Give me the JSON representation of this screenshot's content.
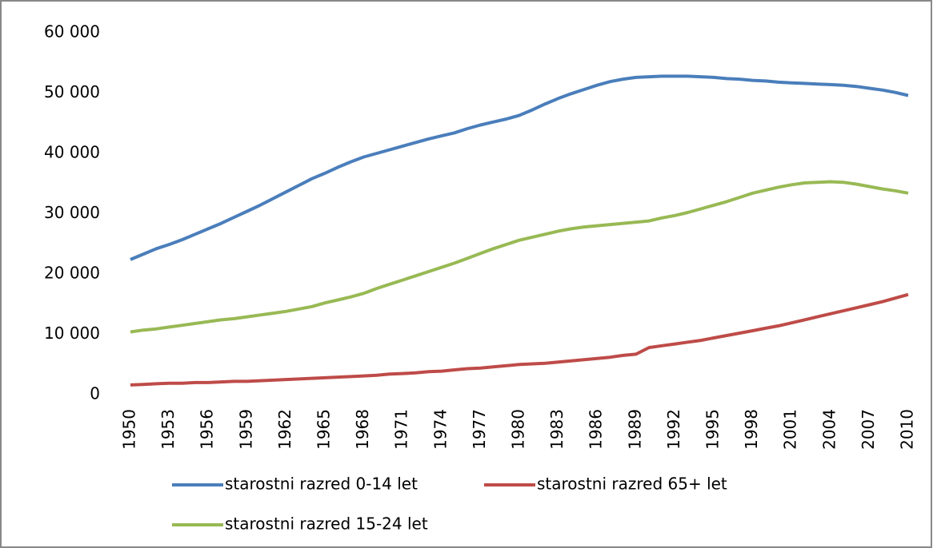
{
  "chart_data": {
    "type": "line",
    "categories": [
      "1950",
      null,
      null,
      "1953",
      null,
      null,
      "1956",
      null,
      null,
      "1959",
      null,
      null,
      "1962",
      null,
      null,
      "1965",
      null,
      null,
      "1968",
      null,
      null,
      "1971",
      null,
      null,
      "1974",
      null,
      null,
      "1977",
      null,
      null,
      "1980",
      null,
      null,
      "1983",
      null,
      null,
      "1986",
      null,
      null,
      "1989",
      null,
      null,
      "1992",
      null,
      null,
      "1995",
      null,
      null,
      "1998",
      null,
      null,
      "2001",
      null,
      null,
      "2004",
      null,
      null,
      "2007",
      null,
      null,
      "2010"
    ],
    "series": [
      {
        "name": "starostni razred 0-14 let",
        "color": "#4a7ebb",
        "values": [
          22400,
          23300,
          24200,
          24900,
          25700,
          26600,
          27500,
          28400,
          29400,
          30400,
          31400,
          32500,
          33600,
          34700,
          35800,
          36700,
          37700,
          38600,
          39400,
          40000,
          40600,
          41200,
          41800,
          42400,
          42900,
          43400,
          44100,
          44700,
          45200,
          45700,
          46300,
          47200,
          48200,
          49100,
          49900,
          50600,
          51300,
          51900,
          52300,
          52600,
          52700,
          52800,
          52800,
          52800,
          52700,
          52600,
          52400,
          52300,
          52100,
          52000,
          51800,
          51700,
          51600,
          51500,
          51400,
          51300,
          51100,
          50800,
          50500,
          50100,
          49600
        ]
      },
      {
        "name": "starostni razred 65+ let",
        "color": "#be4b48",
        "values": [
          1600,
          1700,
          1800,
          1900,
          1900,
          2000,
          2000,
          2100,
          2200,
          2200,
          2300,
          2400,
          2500,
          2600,
          2700,
          2800,
          2900,
          3000,
          3100,
          3200,
          3400,
          3500,
          3600,
          3800,
          3900,
          4100,
          4300,
          4400,
          4600,
          4800,
          5000,
          5100,
          5200,
          5400,
          5600,
          5800,
          6000,
          6200,
          6500,
          6700,
          7800,
          8100,
          8400,
          8700,
          9000,
          9400,
          9800,
          10200,
          10600,
          11000,
          11400,
          11900,
          12400,
          12900,
          13400,
          13900,
          14400,
          14900,
          15400,
          16000,
          16600
        ]
      },
      {
        "name": "starostni razred 15-24 let",
        "color": "#98b954",
        "values": [
          10400,
          10700,
          10900,
          11200,
          11500,
          11800,
          12100,
          12400,
          12600,
          12900,
          13200,
          13500,
          13800,
          14200,
          14600,
          15200,
          15700,
          16200,
          16800,
          17600,
          18300,
          19000,
          19700,
          20400,
          21100,
          21800,
          22600,
          23400,
          24200,
          24900,
          25600,
          26100,
          26600,
          27100,
          27500,
          27800,
          28000,
          28200,
          28400,
          28600,
          28800,
          29300,
          29700,
          30200,
          30800,
          31400,
          32000,
          32700,
          33400,
          33900,
          34400,
          34800,
          35100,
          35200,
          35300,
          35200,
          34900,
          34500,
          34100,
          33800,
          33400
        ]
      }
    ],
    "ylim": [
      0,
      60000
    ],
    "yticks": [
      0,
      {
        "value": 10000,
        "label": "10 000"
      },
      {
        "value": 20000,
        "label": "20 000"
      },
      {
        "value": 30000,
        "label": "30 000"
      },
      {
        "value": 40000,
        "label": "40 000"
      },
      {
        "value": 50000,
        "label": "50 000"
      },
      {
        "value": 60000,
        "label": "60 000"
      }
    ],
    "grid": false
  }
}
